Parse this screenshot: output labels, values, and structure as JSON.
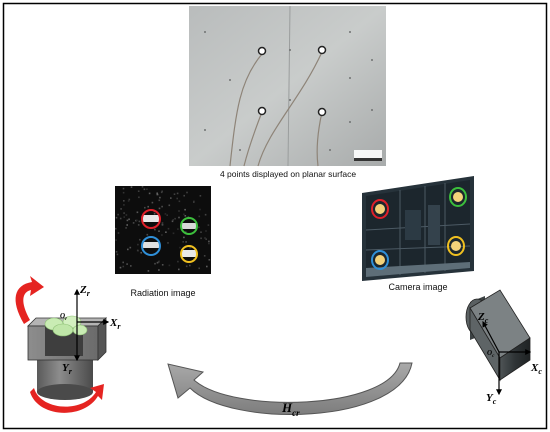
{
  "captions": {
    "planar": "4 points displayed on planar surface",
    "radiation": "Radiation image",
    "camera": "Camera image"
  },
  "axes_radiation": {
    "z_main": "Z",
    "z_sub": "r",
    "x_main": "X",
    "x_sub": "r",
    "y_main": "Y",
    "y_sub": "r",
    "o_main": "O",
    "o_sub": "r"
  },
  "axes_camera": {
    "z_main": "Z",
    "z_sub": "c",
    "x_main": "X",
    "x_sub": "c",
    "y_main": "Y",
    "y_sub": "c",
    "o_main": "O",
    "o_sub": "c"
  },
  "transform": {
    "main": "H",
    "sub": "cr"
  },
  "colors": {
    "red_marker": "#e0202a",
    "blue_marker": "#2f8fd8",
    "green_marker": "#3cbf3c",
    "yellow_marker": "#f0c020",
    "rotation_arrow": "#e52421",
    "transform_arrow": "#8a8a8a",
    "frame_border": "#000000"
  }
}
